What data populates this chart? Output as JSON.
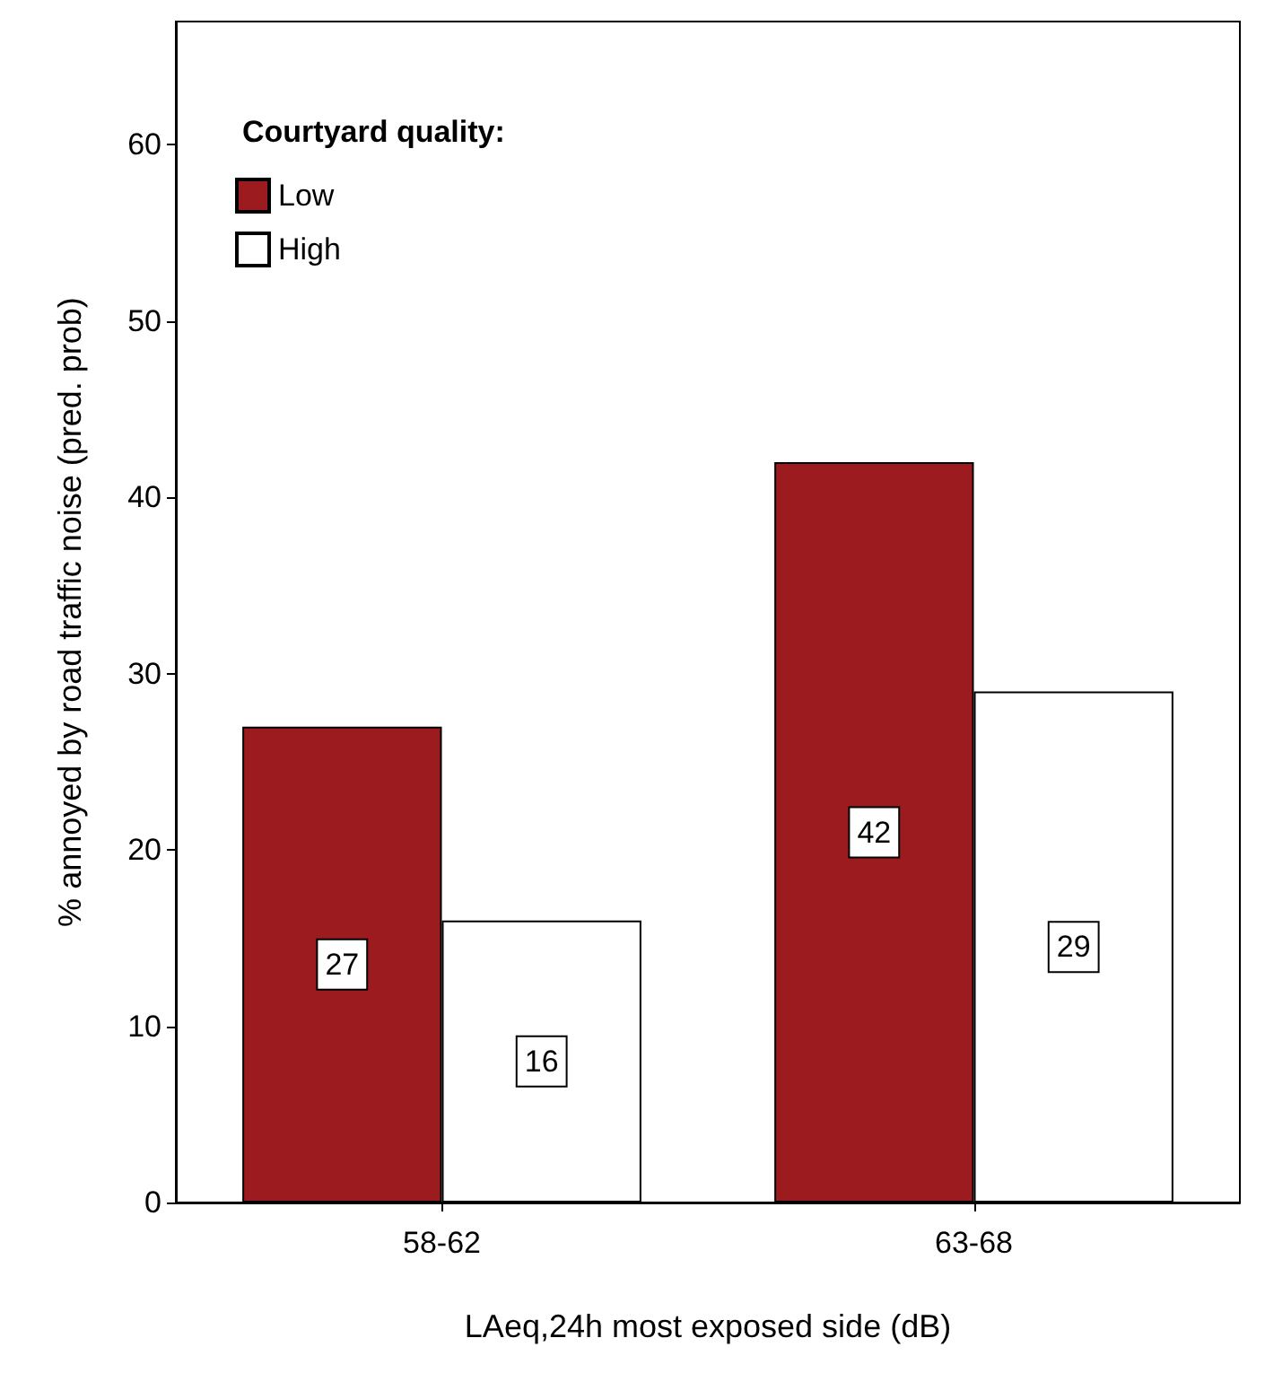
{
  "chart_data": {
    "type": "bar",
    "xlabel": "LAeq,24h most exposed side (dB)",
    "ylabel": "% annoyed by road traffic noise (pred. prob)",
    "legend_title": "Courtyard quality:",
    "categories": [
      "58-62",
      "63-68"
    ],
    "series": [
      {
        "name": "Low",
        "color": "#9b1b1e",
        "values": [
          27,
          42
        ]
      },
      {
        "name": "High",
        "color": "#ffffff",
        "values": [
          16,
          29
        ]
      }
    ],
    "ylim": [
      0,
      67
    ],
    "yticks": [
      0,
      10,
      20,
      30,
      40,
      50,
      60
    ],
    "grid": false,
    "legend": "top left",
    "data_labels": true
  }
}
